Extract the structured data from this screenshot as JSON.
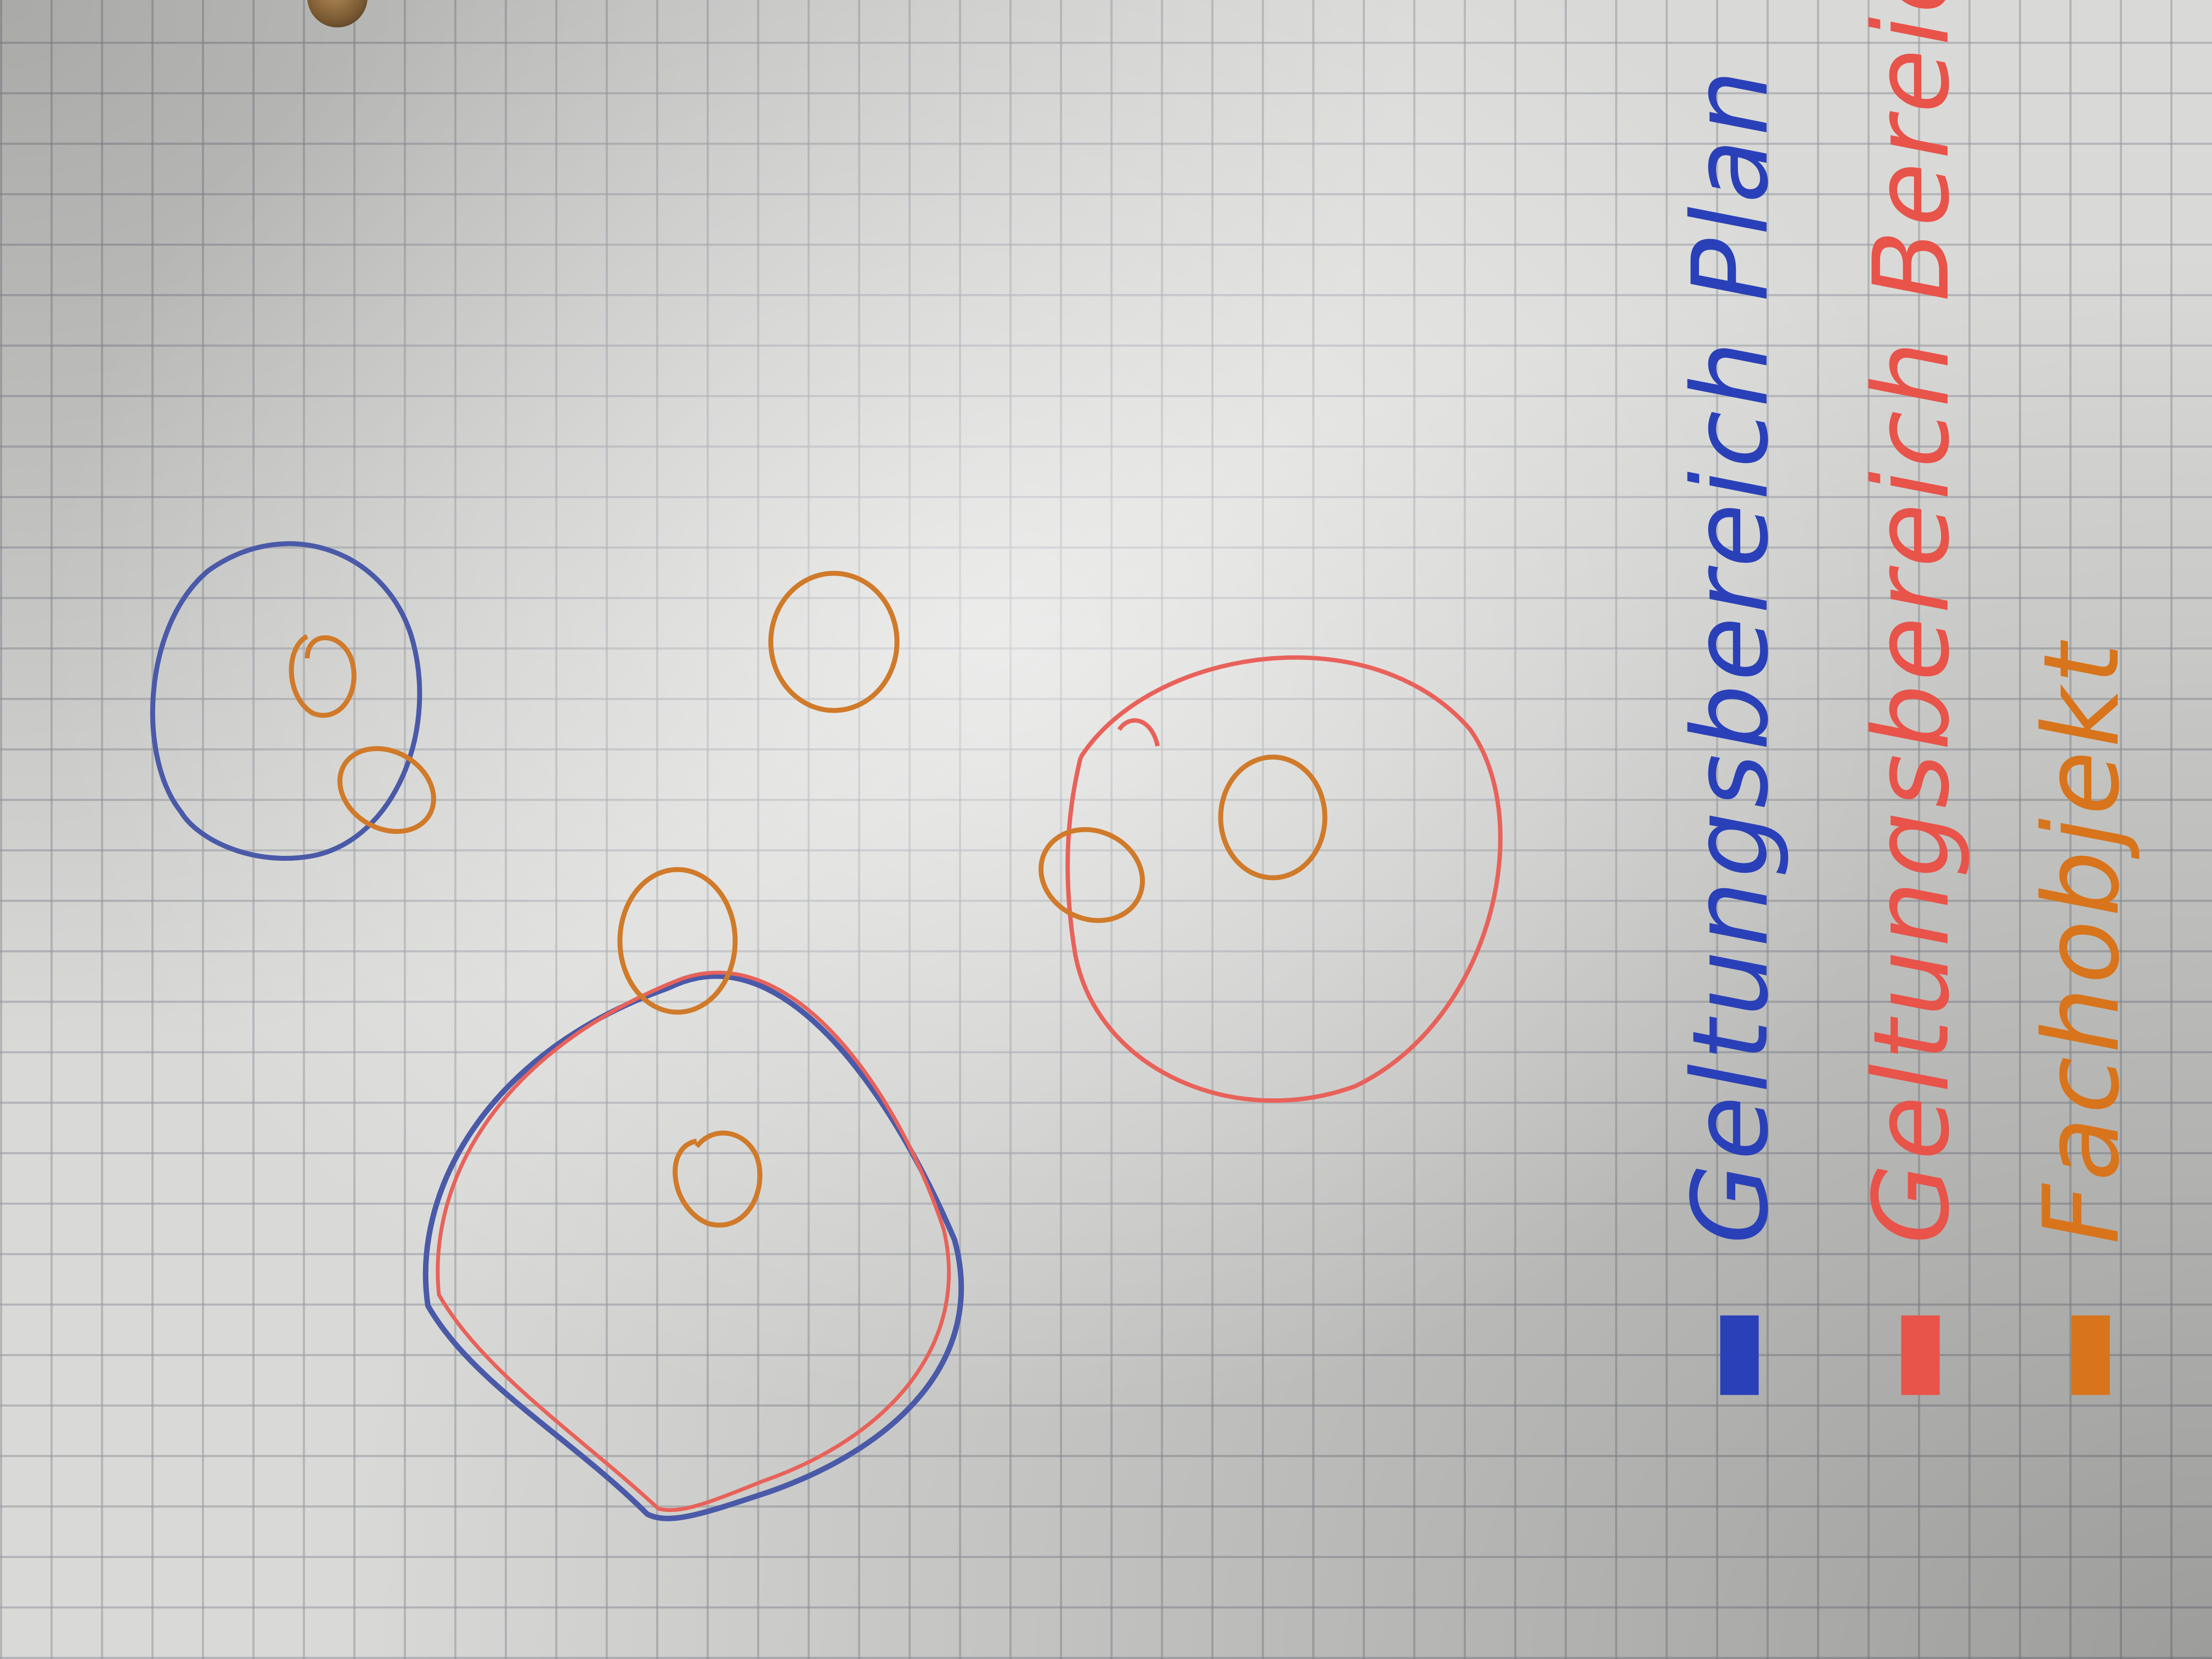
{
  "legend": {
    "items": [
      {
        "marker": "▬",
        "label": "Geltungsbereich Plan",
        "color": "#2a40b8"
      },
      {
        "marker": "▬",
        "label": "Geltungsbereich Bereich",
        "color": "#e8534a"
      },
      {
        "marker": "▬",
        "label": "Fachobjekt",
        "color": "#d8741c"
      }
    ]
  },
  "ink_colors": {
    "blue": "#3a4fa6",
    "red": "#e8625a",
    "orange": "#d07a2a"
  }
}
